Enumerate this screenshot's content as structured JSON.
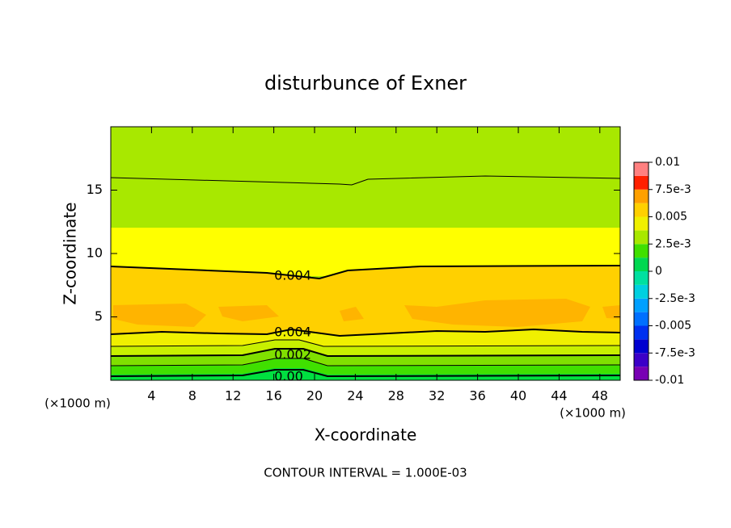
{
  "chart_data": {
    "type": "contour",
    "title": "disturbunce of Exner",
    "x_label": "X-coordinate",
    "y_label": "Z-coordinate",
    "x_unit_label": "(×1000 m)",
    "footer": "CONTOUR INTERVAL = 1.000E-03",
    "xlim": [
      0,
      50
    ],
    "xticks": [
      4,
      8,
      12,
      16,
      20,
      24,
      28,
      32,
      36,
      40,
      44,
      48
    ],
    "ylim": [
      0,
      20
    ],
    "yticks": [
      5,
      10,
      15
    ],
    "contour_labels": [
      0.004,
      0.004,
      0.002,
      {
        "value": 0,
        "label": "0.00"
      }
    ],
    "colorbar": {
      "lim": [
        -0.01,
        0.01
      ],
      "colors": [
        "#7800b4",
        "#3c00c8",
        "#0000d0",
        "#0030f0",
        "#0070ff",
        "#00a0ff",
        "#00d0e0",
        "#00e0a0",
        "#00d850",
        "#40e000",
        "#a8e800",
        "#f0f000",
        "#ffd000",
        "#ffa000",
        "#ff2000",
        "#ff8080"
      ],
      "ticks": [
        0.01,
        {
          "value": 0.0075,
          "label": "7.5e-3"
        },
        0.005,
        {
          "value": 0.0025,
          "label": "2.5e-3"
        },
        0,
        {
          "value": -0.0025,
          "label": "-2.5e-3"
        },
        -0.005,
        {
          "value": -0.0075,
          "label": "-7.5e-3"
        },
        -0.01
      ]
    }
  }
}
